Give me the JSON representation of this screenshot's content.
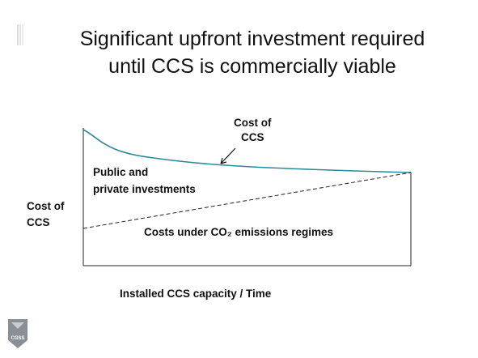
{
  "title": [
    "Significant upfront investment required",
    "until CCS is commercially viable"
  ],
  "diagram": {
    "curve_label": [
      "Cost of",
      "CCS"
    ],
    "area_label": [
      "Public and",
      "private investments"
    ],
    "y_axis_label": [
      "Cost of",
      "CCS"
    ],
    "lower_label": "Costs under CO₂ emissions regimes",
    "x_axis_label": "Installed CCS capacity / Time"
  },
  "logo": "CGSS"
}
